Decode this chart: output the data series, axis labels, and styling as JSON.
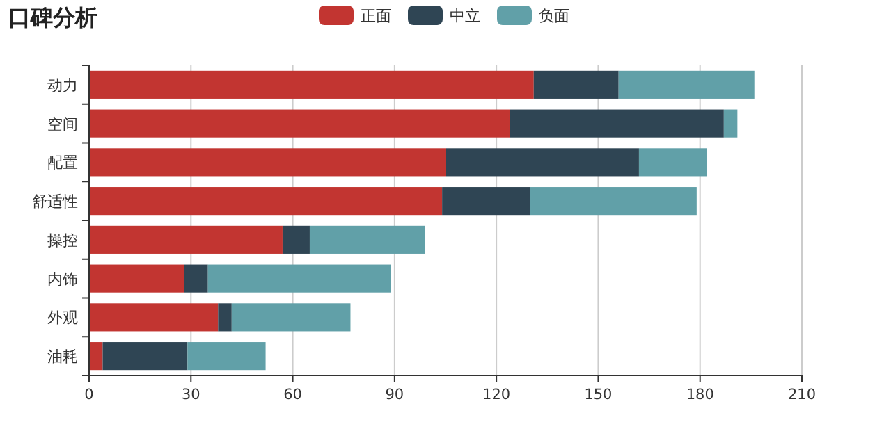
{
  "chart_data": {
    "type": "bar",
    "orientation": "horizontal",
    "stacked": true,
    "title": "口碑分析",
    "categories": [
      "动力",
      "空间",
      "配置",
      "舒适性",
      "操控",
      "内饰",
      "外观",
      "油耗"
    ],
    "series": [
      {
        "name": "正面",
        "color": "#c23531",
        "values": [
          131,
          124,
          105,
          104,
          57,
          28,
          38,
          4
        ]
      },
      {
        "name": "中立",
        "color": "#2f4554",
        "values": [
          25,
          63,
          57,
          26,
          8,
          7,
          4,
          25
        ]
      },
      {
        "name": "负面",
        "color": "#61a0a8",
        "values": [
          40,
          4,
          20,
          49,
          34,
          54,
          35,
          23
        ]
      }
    ],
    "xlim": [
      0,
      210
    ],
    "xticks": [
      0,
      30,
      60,
      90,
      120,
      150,
      180,
      210
    ],
    "grid": "x",
    "legend": "top"
  }
}
